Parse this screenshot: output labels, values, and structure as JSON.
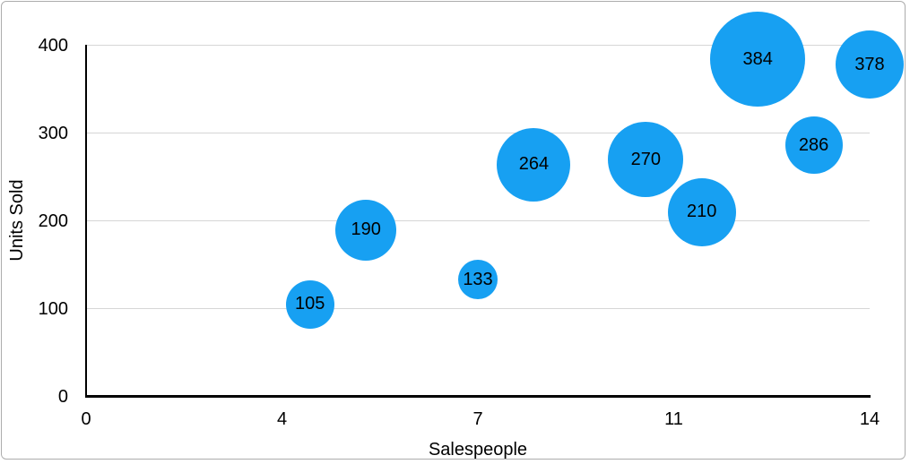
{
  "figure": {
    "background": "#ffffff",
    "border_color": "#acacac"
  },
  "chart_data": {
    "type": "scatter",
    "variant": "bubble",
    "title": "",
    "xlabel": "Salespeople",
    "ylabel": "Units Sold",
    "xlim": [
      0,
      14
    ],
    "ylim": [
      0,
      400
    ],
    "grid": "horizontal-only",
    "legend": "none",
    "x_ticks": [
      {
        "pos": 0,
        "label": "0"
      },
      {
        "pos": 3.5,
        "label": "4"
      },
      {
        "pos": 7,
        "label": "7"
      },
      {
        "pos": 10.5,
        "label": "11"
      },
      {
        "pos": 14,
        "label": "14"
      }
    ],
    "y_ticks": [
      {
        "value": 0,
        "label": "0"
      },
      {
        "value": 100,
        "label": "100"
      },
      {
        "value": 200,
        "label": "200"
      },
      {
        "value": 300,
        "label": "300"
      },
      {
        "value": 400,
        "label": "400"
      }
    ],
    "points": [
      {
        "x": 4,
        "units_sold": 105,
        "label": "105",
        "radius_px": 27
      },
      {
        "x": 5,
        "units_sold": 190,
        "label": "190",
        "radius_px": 34
      },
      {
        "x": 7,
        "units_sold": 133,
        "label": "133",
        "radius_px": 22
      },
      {
        "x": 8,
        "units_sold": 264,
        "label": "264",
        "radius_px": 41
      },
      {
        "x": 10,
        "units_sold": 270,
        "label": "270",
        "radius_px": 42
      },
      {
        "x": 11,
        "units_sold": 210,
        "label": "210",
        "radius_px": 38
      },
      {
        "x": 12,
        "units_sold": 384,
        "label": "384",
        "radius_px": 53
      },
      {
        "x": 13,
        "units_sold": 286,
        "label": "286",
        "radius_px": 32
      },
      {
        "x": 14,
        "units_sold": 378,
        "label": "378",
        "radius_px": 38
      }
    ],
    "colors": {
      "bubble": "#17a0f2",
      "bubble_label": "#000000",
      "axis_line": "#000000",
      "gridline": "#d6d6d6",
      "tick_text": "#000000",
      "axis_title_text": "#000000"
    }
  }
}
